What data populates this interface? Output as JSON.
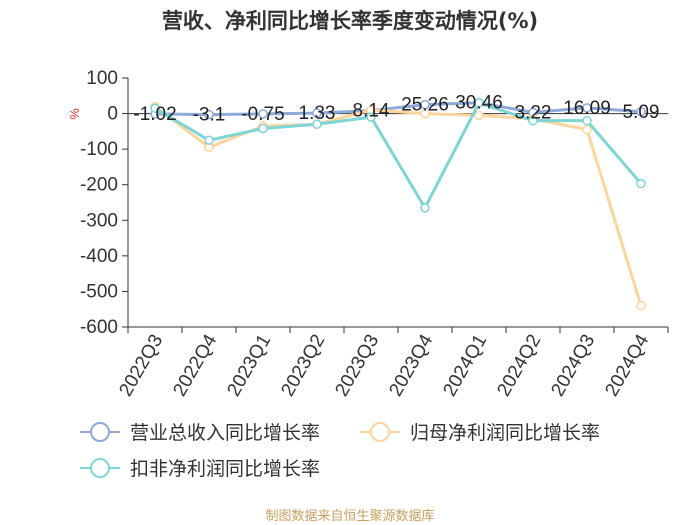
{
  "chart_data": {
    "type": "line",
    "title": "营收、净利同比增长率季度变动情况(%)",
    "unit": "%",
    "categories": [
      "2022Q3",
      "2022Q4",
      "2023Q1",
      "2023Q2",
      "2023Q3",
      "2023Q4",
      "2024Q1",
      "2024Q2",
      "2024Q3",
      "2024Q4"
    ],
    "ylim": [
      -600,
      100
    ],
    "yticks": [
      100,
      0,
      -100,
      -200,
      -300,
      -400,
      -500,
      -600
    ],
    "grid": false,
    "legend_position": "bottom",
    "series": [
      {
        "name": "营业总收入同比增长率",
        "color": "#8eaadb",
        "values": [
          -1.02,
          -3.1,
          -0.75,
          1.33,
          8.14,
          25.26,
          30.46,
          3.22,
          16.09,
          5.09
        ],
        "labels": [
          "-1.02",
          "-3.1",
          "-0.75",
          "1.33",
          "8.14",
          "25.26",
          "30.46",
          "3.22",
          "16.09",
          "5.09"
        ]
      },
      {
        "name": "归母净利润同比增长率",
        "color": "#fbd59c",
        "values": [
          20,
          -95,
          -35,
          -30,
          10,
          0,
          -5,
          -15,
          -45,
          -540
        ]
      },
      {
        "name": "扣非净利润同比增长率",
        "color": "#7dd5d5",
        "values": [
          15,
          -75,
          -42,
          -30,
          -10,
          -265,
          30,
          -20,
          -20,
          -197
        ]
      }
    ]
  },
  "source": "制图数据来自恒生聚源数据库"
}
